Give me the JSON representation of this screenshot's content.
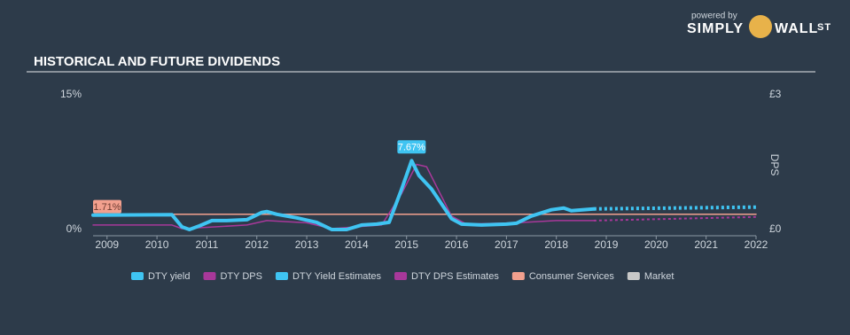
{
  "branding": {
    "powered_by": "powered by",
    "name": "SIMPLY",
    "name2": "WALL",
    "name3": "ST"
  },
  "chart_data": {
    "type": "line",
    "title": "HISTORICAL AND FUTURE DIVIDENDS",
    "y2_label": "DPS",
    "xlim": [
      2008.72,
      2022
    ],
    "xticks": [
      2009,
      2010,
      2011,
      2012,
      2013,
      2014,
      2015,
      2016,
      2017,
      2018,
      2019,
      2020,
      2021,
      2022
    ],
    "ylim": [
      0,
      15
    ],
    "yticks": [
      {
        "value": 0,
        "label": "0%"
      },
      {
        "value": 15,
        "label": "15%"
      }
    ],
    "y2lim": [
      0,
      3
    ],
    "y2ticks": [
      {
        "value": 0,
        "label": "£0"
      },
      {
        "value": 3,
        "label": "£3"
      }
    ],
    "series": [
      {
        "name": "DTY yield",
        "color": "#3fc4f2",
        "style": "solid",
        "width": 4,
        "x": [
          2008.72,
          2010.3,
          2010.5,
          2010.65,
          2010.85,
          2011.1,
          2011.4,
          2011.8,
          2012.1,
          2012.2,
          2012.4,
          2012.8,
          2013.2,
          2013.5,
          2013.8,
          2014.1,
          2014.4,
          2014.65,
          2014.9,
          2015.1,
          2015.25,
          2015.5,
          2015.9,
          2016.1,
          2016.5,
          2017.0,
          2017.2,
          2017.5,
          2017.9,
          2018.15,
          2018.3,
          2018.75
        ],
        "values": [
          1.6,
          1.65,
          0.3,
          0,
          0.4,
          1.0,
          1.0,
          1.1,
          1.9,
          2.0,
          1.7,
          1.3,
          0.8,
          0,
          0,
          0.5,
          0.6,
          0.8,
          4.5,
          7.67,
          6.0,
          4.5,
          1.2,
          0.6,
          0.5,
          0.6,
          0.7,
          1.5,
          2.2,
          2.4,
          2.1,
          2.3
        ],
        "value_labels": [
          null,
          null,
          null,
          null,
          null,
          null,
          null,
          null,
          null,
          null,
          null,
          null,
          null,
          null,
          null,
          null,
          null,
          null,
          null,
          "7.67%",
          null,
          null,
          null,
          null,
          null,
          null,
          null,
          null,
          null,
          null,
          null,
          null
        ]
      },
      {
        "name": "DTY DPS",
        "color": "#a8389a",
        "style": "solid",
        "width": 1.5,
        "axis": "y2",
        "x": [
          2008.72,
          2010.3,
          2010.5,
          2011.0,
          2011.8,
          2012.2,
          2013.0,
          2013.5,
          2014.5,
          2014.9,
          2015.2,
          2015.4,
          2015.9,
          2016.2,
          2017.2,
          2018.0,
          2018.75
        ],
        "values": [
          0.1,
          0.1,
          0.02,
          0.05,
          0.1,
          0.2,
          0.15,
          0.02,
          0.1,
          0.8,
          1.45,
          1.4,
          0.3,
          0.12,
          0.15,
          0.2,
          0.2
        ]
      },
      {
        "name": "DTY Yield Estimates",
        "color": "#3fc4f2",
        "style": "dotted",
        "width": 4,
        "x": [
          2018.75,
          2022
        ],
        "values": [
          2.3,
          2.5
        ]
      },
      {
        "name": "DTY DPS Estimates",
        "color": "#a8389a",
        "style": "dotted",
        "width": 2,
        "axis": "y2",
        "x": [
          2018.75,
          2022
        ],
        "values": [
          0.2,
          0.28
        ]
      },
      {
        "name": "Consumer Services",
        "color": "#f2a08e",
        "style": "solid",
        "width": 1.5,
        "x": [
          2008.72,
          2022
        ],
        "values": [
          1.71,
          1.71
        ],
        "value_labels": [
          "1.71%",
          null
        ]
      },
      {
        "name": "Market",
        "color": "#c8c8c8",
        "style": "solid",
        "width": 1.5,
        "x": [],
        "values": []
      }
    ]
  }
}
